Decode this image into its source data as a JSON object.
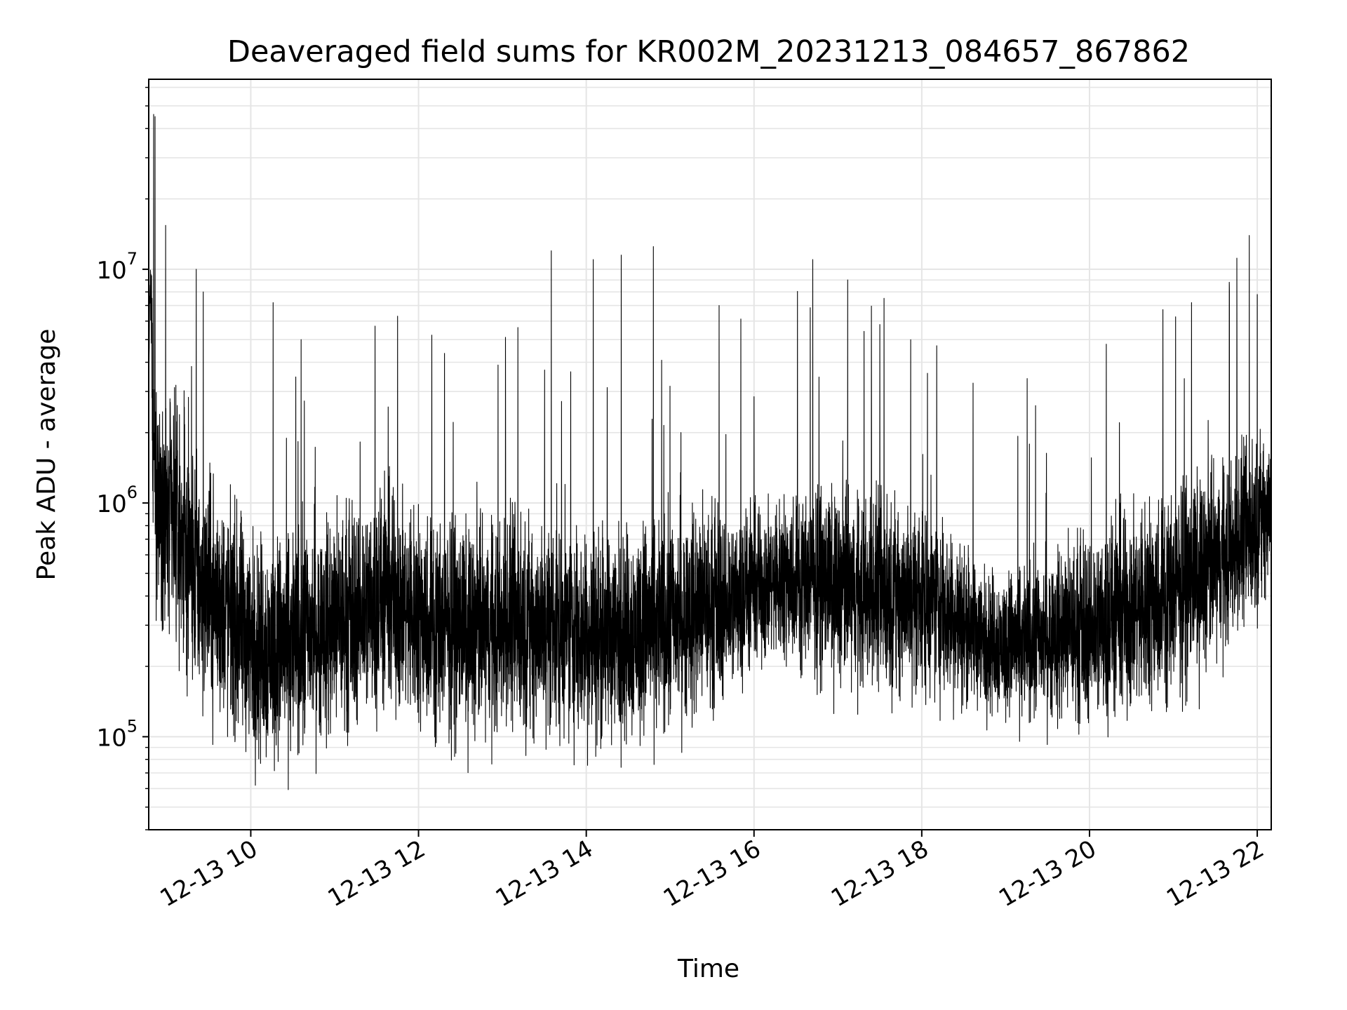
{
  "chart_data": {
    "type": "line",
    "title": "Deaveraged field sums for KR002M_20231213_084657_867862",
    "xlabel": "Time",
    "ylabel": "Peak ADU - average",
    "y_scale": "log",
    "ylim": [
      40000,
      65000000
    ],
    "xlim": [
      "2023-12-13T08:47:00",
      "2023-12-13T22:10:00"
    ],
    "grid": true,
    "grid_minor": true,
    "line_color": "#000000",
    "grid_color": "#e5e5e5",
    "x_ticks": [
      {
        "value": "2023-12-13T10:00:00",
        "label": "12-13 10"
      },
      {
        "value": "2023-12-13T12:00:00",
        "label": "12-13 12"
      },
      {
        "value": "2023-12-13T14:00:00",
        "label": "12-13 14"
      },
      {
        "value": "2023-12-13T16:00:00",
        "label": "12-13 16"
      },
      {
        "value": "2023-12-13T18:00:00",
        "label": "12-13 18"
      },
      {
        "value": "2023-12-13T20:00:00",
        "label": "12-13 20"
      },
      {
        "value": "2023-12-13T22:00:00",
        "label": "12-13 22"
      }
    ],
    "y_ticks": [
      {
        "value": 100000,
        "base": "10",
        "exp": "5"
      },
      {
        "value": 1000000,
        "base": "10",
        "exp": "6"
      },
      {
        "value": 10000000,
        "base": "10",
        "exp": "7"
      }
    ],
    "series": [
      {
        "name": "",
        "x": [
          "2023-12-13T08:47:00",
          "2023-12-13T08:48:00",
          "2023-12-13T08:50:00",
          "2023-12-13T08:52:00",
          "2023-12-13T08:55:00",
          "2023-12-13T09:00:00",
          "2023-12-13T09:05:00",
          "2023-12-13T09:10:00",
          "2023-12-13T09:15:00",
          "2023-12-13T09:20:00",
          "2023-12-13T09:25:00",
          "2023-12-13T09:30:00",
          "2023-12-13T09:40:00",
          "2023-12-13T09:50:00",
          "2023-12-13T10:00:00",
          "2023-12-13T10:10:00",
          "2023-12-13T10:20:00",
          "2023-12-13T10:30:00",
          "2023-12-13T10:40:00",
          "2023-12-13T10:50:00",
          "2023-12-13T11:00:00",
          "2023-12-13T11:10:00",
          "2023-12-13T11:20:00",
          "2023-12-13T11:30:00",
          "2023-12-13T11:40:00",
          "2023-12-13T11:50:00",
          "2023-12-13T12:00:00",
          "2023-12-13T12:15:00",
          "2023-12-13T12:30:00",
          "2023-12-13T12:45:00",
          "2023-12-13T13:00:00",
          "2023-12-13T13:15:00",
          "2023-12-13T13:30:00",
          "2023-12-13T13:45:00",
          "2023-12-13T14:00:00",
          "2023-12-13T14:15:00",
          "2023-12-13T14:30:00",
          "2023-12-13T14:45:00",
          "2023-12-13T15:00:00",
          "2023-12-13T15:15:00",
          "2023-12-13T15:30:00",
          "2023-12-13T15:45:00",
          "2023-12-13T16:00:00",
          "2023-12-13T16:15:00",
          "2023-12-13T16:30:00",
          "2023-12-13T16:45:00",
          "2023-12-13T17:00:00",
          "2023-12-13T17:15:00",
          "2023-12-13T17:30:00",
          "2023-12-13T17:45:00",
          "2023-12-13T18:00:00",
          "2023-12-13T18:15:00",
          "2023-12-13T18:30:00",
          "2023-12-13T18:45:00",
          "2023-12-13T19:00:00",
          "2023-12-13T19:15:00",
          "2023-12-13T19:30:00",
          "2023-12-13T19:45:00",
          "2023-12-13T20:00:00",
          "2023-12-13T20:15:00",
          "2023-12-13T20:30:00",
          "2023-12-13T20:45:00",
          "2023-12-13T21:00:00",
          "2023-12-13T21:15:00",
          "2023-12-13T21:30:00",
          "2023-12-13T21:45:00",
          "2023-12-13T22:00:00",
          "2023-12-13T22:10:00"
        ],
        "baseline": [
          2500000,
          9000000,
          1500000,
          1200000,
          1100000,
          900000,
          800000,
          700000,
          600000,
          500000,
          450000,
          400000,
          350000,
          300000,
          250000,
          240000,
          240000,
          260000,
          280000,
          290000,
          300000,
          320000,
          360000,
          380000,
          390000,
          360000,
          330000,
          300000,
          290000,
          290000,
          300000,
          300000,
          290000,
          280000,
          270000,
          270000,
          280000,
          300000,
          320000,
          340000,
          360000,
          390000,
          430000,
          470000,
          480000,
          460000,
          440000,
          420000,
          400000,
          400000,
          380000,
          350000,
          300000,
          260000,
          250000,
          260000,
          270000,
          280000,
          300000,
          320000,
          350000,
          380000,
          420000,
          480000,
          560000,
          650000,
          800000,
          1000000
        ],
        "spread": [
          1.0,
          1.2,
          2.2,
          2.4,
          2.5,
          2.6,
          2.7,
          2.7,
          2.7,
          2.7,
          2.6,
          2.6,
          2.6,
          2.5,
          2.5,
          2.5,
          2.5,
          2.5,
          2.5,
          2.5,
          2.5,
          2.5,
          2.5,
          2.5,
          2.5,
          2.4,
          2.4,
          2.4,
          2.4,
          2.4,
          2.4,
          2.4,
          2.4,
          2.4,
          2.4,
          2.4,
          2.4,
          2.4,
          2.4,
          2.4,
          2.3,
          2.1,
          1.9,
          1.9,
          2.0,
          2.1,
          2.2,
          2.2,
          2.2,
          2.2,
          2.2,
          2.1,
          1.9,
          1.8,
          1.8,
          1.9,
          2.0,
          2.1,
          2.2,
          2.3,
          2.3,
          2.3,
          2.3,
          2.3,
          2.2,
          2.1,
          2.0,
          1.9
        ],
        "spikes": [
          {
            "x": "2023-12-13T08:50:30",
            "value": 46000000
          },
          {
            "x": "2023-12-13T08:51:30",
            "value": 45000000
          },
          {
            "x": "2023-12-13T09:21:00",
            "value": 10000000
          },
          {
            "x": "2023-12-13T09:26:00",
            "value": 8000000
          },
          {
            "x": "2023-12-13T10:16:00",
            "value": 7200000
          },
          {
            "x": "2023-12-13T10:36:00",
            "value": 5000000
          },
          {
            "x": "2023-12-13T11:45:00",
            "value": 6300000
          },
          {
            "x": "2023-12-13T13:35:00",
            "value": 12000000
          },
          {
            "x": "2023-12-13T14:05:00",
            "value": 11000000
          },
          {
            "x": "2023-12-13T14:25:00",
            "value": 11500000
          },
          {
            "x": "2023-12-13T14:48:00",
            "value": 12500000
          },
          {
            "x": "2023-12-13T15:35:00",
            "value": 7000000
          },
          {
            "x": "2023-12-13T16:42:00",
            "value": 11000000
          },
          {
            "x": "2023-12-13T17:07:00",
            "value": 9000000
          },
          {
            "x": "2023-12-13T17:30:00",
            "value": 5800000
          },
          {
            "x": "2023-12-13T21:13:00",
            "value": 7200000
          },
          {
            "x": "2023-12-13T21:40:00",
            "value": 8800000
          },
          {
            "x": "2023-12-13T22:00:00",
            "value": 7800000
          }
        ]
      }
    ]
  }
}
